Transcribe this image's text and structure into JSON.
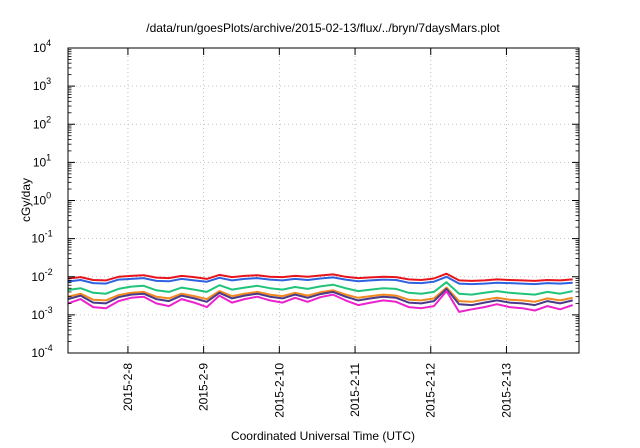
{
  "chart_data": {
    "type": "line",
    "title": "/data/run/goesPlots/archive/2015-02-13/flux/../bryn/7daysMars.plot",
    "xlabel": "Coordinated Universal Time (UTC)",
    "ylabel": "cGy/day",
    "yscale": "log",
    "ylim": [
      0.0001,
      10000
    ],
    "xlim": [
      "2015-02-07 05:00",
      "2015-02-13 23:00"
    ],
    "grid": true,
    "legend": "none",
    "x_ticks": [
      "2015-2-8",
      "2015-2-9",
      "2015-2-10",
      "2015-2-11",
      "2015-2-12",
      "2015-2-13"
    ],
    "y_ticks": [
      {
        "base": "10",
        "exp": "4"
      },
      {
        "base": "10",
        "exp": "3"
      },
      {
        "base": "10",
        "exp": "2"
      },
      {
        "base": "10",
        "exp": "1"
      },
      {
        "base": "10",
        "exp": "0"
      },
      {
        "base": "10",
        "exp": "-1"
      },
      {
        "base": "10",
        "exp": "-2"
      },
      {
        "base": "10",
        "exp": "-3"
      },
      {
        "base": "10",
        "exp": "-4"
      }
    ],
    "x": [
      "2015-02-07 05:00",
      "2015-02-07 09:00",
      "2015-02-07 13:00",
      "2015-02-07 17:00",
      "2015-02-07 21:00",
      "2015-02-08 01:00",
      "2015-02-08 05:00",
      "2015-02-08 09:00",
      "2015-02-08 13:00",
      "2015-02-08 17:00",
      "2015-02-08 21:00",
      "2015-02-09 01:00",
      "2015-02-09 05:00",
      "2015-02-09 09:00",
      "2015-02-09 13:00",
      "2015-02-09 17:00",
      "2015-02-09 21:00",
      "2015-02-10 01:00",
      "2015-02-10 05:00",
      "2015-02-10 09:00",
      "2015-02-10 13:00",
      "2015-02-10 17:00",
      "2015-02-10 21:00",
      "2015-02-11 01:00",
      "2015-02-11 05:00",
      "2015-02-11 09:00",
      "2015-02-11 13:00",
      "2015-02-11 17:00",
      "2015-02-11 21:00",
      "2015-02-12 01:00",
      "2015-02-12 05:00",
      "2015-02-12 09:00",
      "2015-02-12 13:00",
      "2015-02-12 17:00",
      "2015-02-12 21:00",
      "2015-02-13 01:00",
      "2015-02-13 05:00",
      "2015-02-13 09:00",
      "2015-02-13 13:00",
      "2015-02-13 17:00",
      "2015-02-13 21:00"
    ],
    "series": [
      {
        "color": "#e8141c",
        "values": [
          0.009,
          0.0098,
          0.0082,
          0.008,
          0.01,
          0.0105,
          0.011,
          0.0095,
          0.0092,
          0.0105,
          0.0098,
          0.0088,
          0.0112,
          0.0098,
          0.0105,
          0.011,
          0.01,
          0.0098,
          0.0105,
          0.01,
          0.0108,
          0.0115,
          0.01,
          0.0092,
          0.0096,
          0.01,
          0.0098,
          0.0085,
          0.0082,
          0.009,
          0.012,
          0.008,
          0.0078,
          0.008,
          0.0085,
          0.0082,
          0.008,
          0.0078,
          0.0082,
          0.008,
          0.0085
        ]
      },
      {
        "color": "#2f62e0",
        "values": [
          0.0075,
          0.0082,
          0.0068,
          0.0066,
          0.0084,
          0.0088,
          0.0092,
          0.0078,
          0.0076,
          0.0088,
          0.008,
          0.0074,
          0.0094,
          0.008,
          0.0088,
          0.0092,
          0.0084,
          0.008,
          0.0088,
          0.0082,
          0.009,
          0.0096,
          0.0084,
          0.0076,
          0.008,
          0.0084,
          0.0082,
          0.007,
          0.0068,
          0.0074,
          0.01,
          0.0066,
          0.0064,
          0.0066,
          0.007,
          0.0068,
          0.0066,
          0.0064,
          0.0068,
          0.0066,
          0.007
        ]
      },
      {
        "color": "#1fc47a",
        "values": [
          0.0045,
          0.005,
          0.0038,
          0.0036,
          0.0048,
          0.0055,
          0.0058,
          0.0044,
          0.004,
          0.0052,
          0.0046,
          0.004,
          0.006,
          0.0046,
          0.0052,
          0.0058,
          0.005,
          0.0046,
          0.0054,
          0.0048,
          0.0056,
          0.0062,
          0.005,
          0.0042,
          0.0046,
          0.005,
          0.0048,
          0.0038,
          0.0036,
          0.004,
          0.0072,
          0.0036,
          0.0034,
          0.0038,
          0.0042,
          0.0038,
          0.0036,
          0.0034,
          0.004,
          0.0036,
          0.0042
        ]
      },
      {
        "color": "#f08a20",
        "values": [
          0.003,
          0.0036,
          0.0025,
          0.0024,
          0.0033,
          0.0038,
          0.004,
          0.003,
          0.0027,
          0.0036,
          0.0031,
          0.0026,
          0.0042,
          0.0031,
          0.0036,
          0.004,
          0.0034,
          0.0031,
          0.0038,
          0.0032,
          0.0039,
          0.0044,
          0.0034,
          0.0028,
          0.0031,
          0.0034,
          0.0032,
          0.0025,
          0.0024,
          0.0027,
          0.0052,
          0.0023,
          0.0022,
          0.0025,
          0.0028,
          0.0025,
          0.0024,
          0.0022,
          0.0027,
          0.0024,
          0.0028
        ]
      },
      {
        "color": "#4a3a8a",
        "values": [
          0.0026,
          0.0032,
          0.0021,
          0.002,
          0.0029,
          0.0034,
          0.0036,
          0.0026,
          0.0023,
          0.0032,
          0.0027,
          0.0022,
          0.0038,
          0.0027,
          0.0032,
          0.0036,
          0.003,
          0.0027,
          0.0034,
          0.0028,
          0.0035,
          0.004,
          0.003,
          0.0024,
          0.0027,
          0.003,
          0.0028,
          0.0021,
          0.002,
          0.0023,
          0.0048,
          0.0019,
          0.0018,
          0.0021,
          0.0024,
          0.0021,
          0.002,
          0.0018,
          0.0023,
          0.002,
          0.0024
        ]
      },
      {
        "color": "#ee22cc",
        "values": [
          0.002,
          0.0026,
          0.0016,
          0.0015,
          0.0023,
          0.0028,
          0.003,
          0.002,
          0.0017,
          0.0026,
          0.0021,
          0.0016,
          0.0032,
          0.0021,
          0.0026,
          0.003,
          0.0024,
          0.0021,
          0.0028,
          0.0022,
          0.0029,
          0.0034,
          0.0024,
          0.0018,
          0.0021,
          0.0024,
          0.0022,
          0.0016,
          0.0015,
          0.0017,
          0.0042,
          0.0012,
          0.0014,
          0.0016,
          0.0019,
          0.0016,
          0.0015,
          0.0013,
          0.0017,
          0.0014,
          0.0018
        ]
      }
    ]
  }
}
